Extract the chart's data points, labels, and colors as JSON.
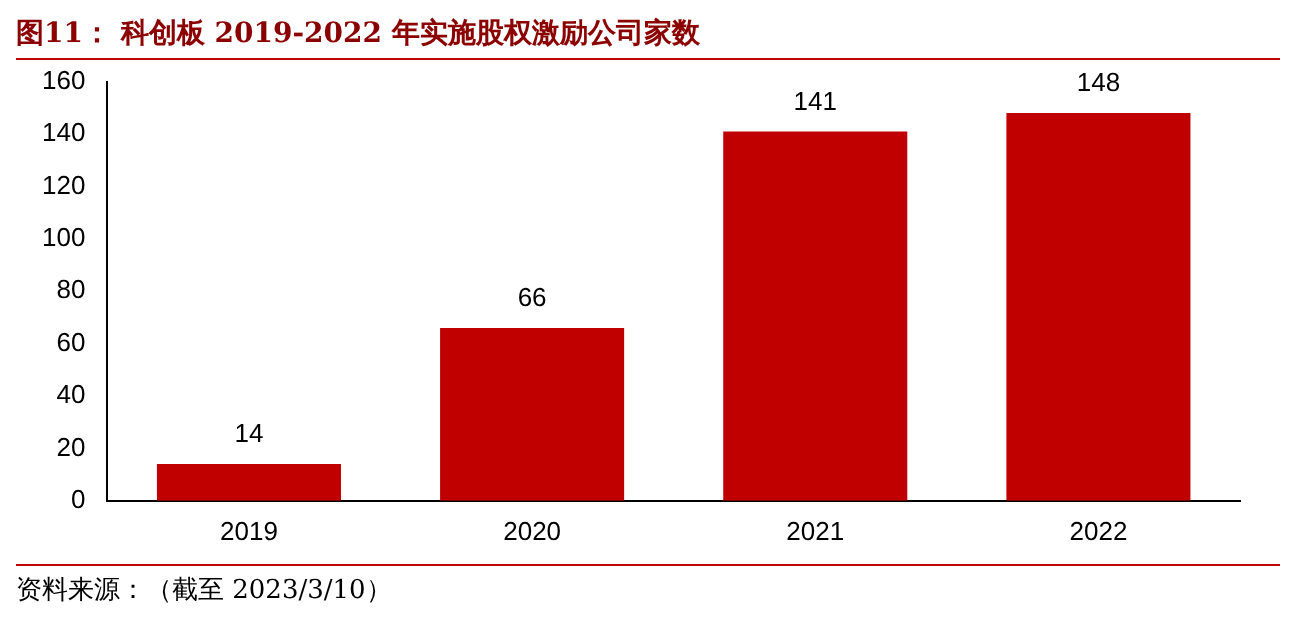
{
  "chart_data": {
    "type": "bar",
    "title": "图11：  科创板 2019-2022 年实施股权激励公司家数",
    "categories": [
      "2019",
      "2020",
      "2021",
      "2022"
    ],
    "values": [
      14,
      66,
      141,
      148
    ],
    "color": "#c00000",
    "ylim": [
      0,
      160
    ],
    "yticks": [
      0,
      20,
      40,
      60,
      80,
      100,
      120,
      140,
      160
    ],
    "data_labels": true,
    "annotations": [
      "资料来源：（截至 2023/3/10）"
    ]
  }
}
